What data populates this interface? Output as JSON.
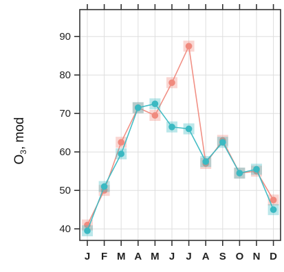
{
  "chart_data": {
    "type": "line",
    "title": "",
    "xlabel": "",
    "ylabel": "O3, mod",
    "ylabel_parts": {
      "main": "O",
      "subscript": "3",
      "rest": ", mod"
    },
    "categories": [
      "J",
      "F",
      "M",
      "A",
      "M",
      "J",
      "J",
      "A",
      "S",
      "O",
      "N",
      "D"
    ],
    "y_ticks": [
      40,
      50,
      60,
      70,
      80,
      90
    ],
    "ylim": [
      37,
      97
    ],
    "grid": true,
    "legend": "none",
    "series": [
      {
        "color": "#F08A7E",
        "values": [
          41.0,
          50.0,
          62.5,
          71.5,
          69.5,
          78.0,
          87.5,
          57.0,
          63.0,
          54.5,
          55.0,
          47.5
        ]
      },
      {
        "color": "#3BB9C2",
        "values": [
          39.5,
          51.0,
          59.5,
          71.5,
          72.5,
          66.5,
          66.0,
          57.5,
          62.5,
          54.5,
          55.5,
          45.0
        ]
      }
    ]
  }
}
